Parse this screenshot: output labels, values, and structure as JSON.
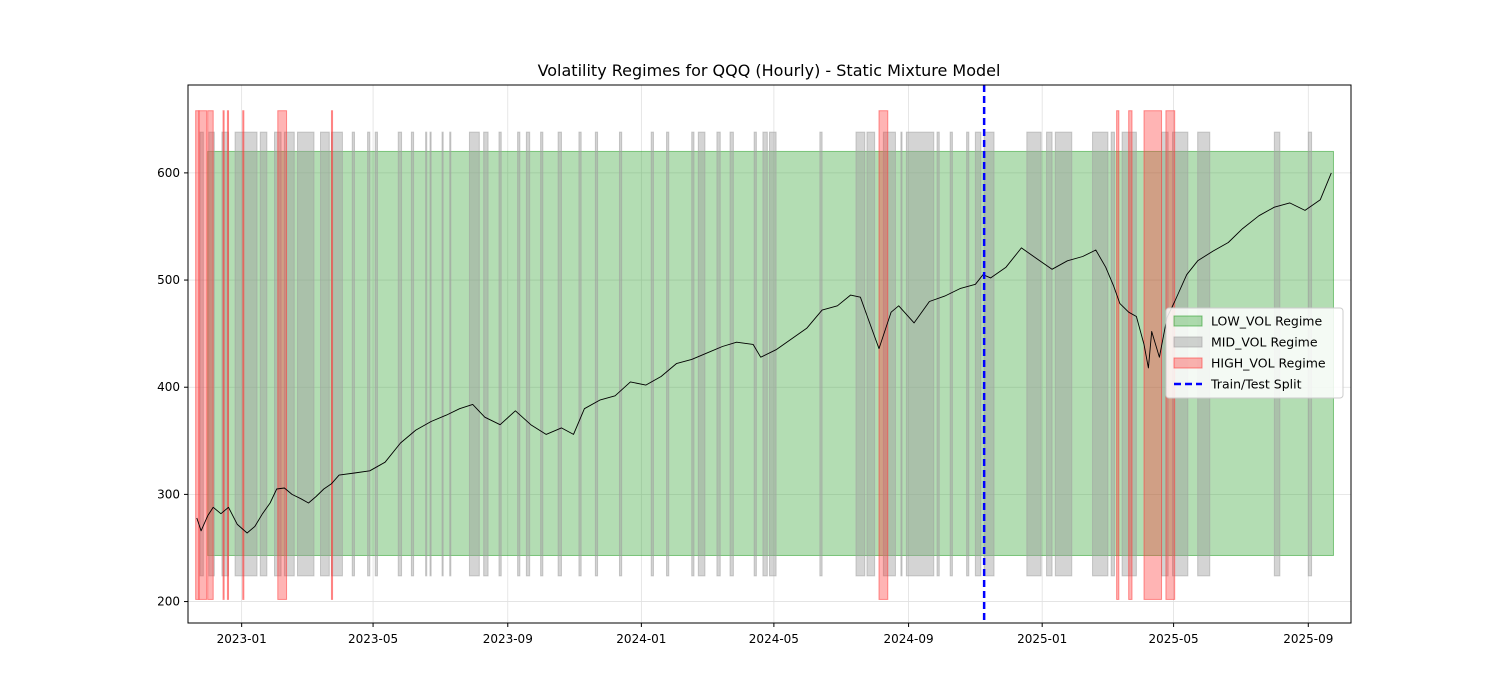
{
  "chart_data": {
    "type": "line",
    "title": "Volatility Regimes for QQQ (Hourly) - Static Mixture Model",
    "xlabel": "",
    "ylabel": "",
    "x_range": [
      "2022-11-13",
      "2025-10-10"
    ],
    "ylim": [
      180,
      682
    ],
    "grid": true,
    "legend_position": "center-right",
    "x_ticks": [
      {
        "date": "2023-01-01",
        "label": "2023-01"
      },
      {
        "date": "2023-05-01",
        "label": "2023-05"
      },
      {
        "date": "2023-09-01",
        "label": "2023-09"
      },
      {
        "date": "2024-01-01",
        "label": "2024-01"
      },
      {
        "date": "2024-05-01",
        "label": "2024-05"
      },
      {
        "date": "2024-09-01",
        "label": "2024-09"
      },
      {
        "date": "2025-01-01",
        "label": "2025-01"
      },
      {
        "date": "2025-05-01",
        "label": "2025-05"
      },
      {
        "date": "2025-09-01",
        "label": "2025-09"
      }
    ],
    "y_ticks": [
      200,
      300,
      400,
      500,
      600
    ],
    "colors": {
      "LOW_VOL": "#2ca02c",
      "MID_VOL": "#a0a0a0",
      "HIGH_VOL": "#ff3b3b",
      "price": "#000000",
      "split": "#0000ff",
      "grid": "#e0e0e0"
    },
    "regime_bands": {
      "LOW_VOL": {
        "y": [
          243,
          620
        ]
      },
      "MID_VOL": {
        "y": [
          224,
          638
        ]
      },
      "HIGH_VOL": {
        "y": [
          202,
          658
        ]
      }
    },
    "legend": [
      {
        "key": "LOW_VOL",
        "label": "LOW_VOL Regime"
      },
      {
        "key": "MID_VOL",
        "label": "MID_VOL Regime"
      },
      {
        "key": "HIGH_VOL",
        "label": "HIGH_VOL Regime"
      },
      {
        "key": "split",
        "label": "Train/Test Split"
      }
    ],
    "regime_spans": {
      "LOW_VOL": [
        [
          "2022-12-01",
          "2025-09-24"
        ]
      ],
      "MID_VOL": [
        [
          "2022-11-24",
          "2022-11-27"
        ],
        [
          "2022-12-02",
          "2022-12-07"
        ],
        [
          "2022-12-14",
          "2022-12-20"
        ],
        [
          "2022-12-26",
          "2023-01-15"
        ],
        [
          "2023-01-18",
          "2023-01-24"
        ],
        [
          "2023-01-31",
          "2023-02-06"
        ],
        [
          "2023-02-09",
          "2023-02-18"
        ],
        [
          "2023-02-21",
          "2023-03-08"
        ],
        [
          "2023-03-14",
          "2023-03-22"
        ],
        [
          "2023-03-24",
          "2023-04-03"
        ],
        [
          "2023-04-12",
          "2023-04-14"
        ],
        [
          "2023-04-26",
          "2023-04-28"
        ],
        [
          "2023-05-03",
          "2023-05-05"
        ],
        [
          "2023-05-24",
          "2023-05-27"
        ],
        [
          "2023-06-05",
          "2023-06-07"
        ],
        [
          "2023-06-18",
          "2023-06-19"
        ],
        [
          "2023-06-22",
          "2023-06-23"
        ],
        [
          "2023-07-03",
          "2023-07-04"
        ],
        [
          "2023-07-10",
          "2023-07-11"
        ],
        [
          "2023-07-28",
          "2023-08-06"
        ],
        [
          "2023-08-10",
          "2023-08-14"
        ],
        [
          "2023-08-24",
          "2023-08-26"
        ],
        [
          "2023-09-10",
          "2023-09-12"
        ],
        [
          "2023-09-18",
          "2023-09-21"
        ],
        [
          "2023-10-01",
          "2023-10-03"
        ],
        [
          "2023-10-17",
          "2023-10-20"
        ],
        [
          "2023-11-05",
          "2023-11-07"
        ],
        [
          "2023-11-20",
          "2023-11-22"
        ],
        [
          "2023-12-12",
          "2023-12-14"
        ],
        [
          "2024-01-10",
          "2024-01-12"
        ],
        [
          "2024-01-24",
          "2024-01-26"
        ],
        [
          "2024-02-16",
          "2024-02-18"
        ],
        [
          "2024-02-22",
          "2024-02-28"
        ],
        [
          "2024-03-10",
          "2024-03-13"
        ],
        [
          "2024-03-22",
          "2024-03-25"
        ],
        [
          "2024-04-13",
          "2024-04-15"
        ],
        [
          "2024-04-21",
          "2024-04-25"
        ],
        [
          "2024-04-27",
          "2024-05-03"
        ],
        [
          "2024-06-12",
          "2024-06-14"
        ],
        [
          "2024-07-15",
          "2024-07-23"
        ],
        [
          "2024-07-25",
          "2024-08-01"
        ],
        [
          "2024-08-09",
          "2024-08-20"
        ],
        [
          "2024-08-25",
          "2024-08-26"
        ],
        [
          "2024-08-30",
          "2024-09-24"
        ],
        [
          "2024-09-27",
          "2024-09-29"
        ],
        [
          "2024-10-09",
          "2024-10-11"
        ],
        [
          "2024-10-24",
          "2024-10-26"
        ],
        [
          "2024-11-01",
          "2024-11-06"
        ],
        [
          "2024-11-09",
          "2024-11-18"
        ],
        [
          "2024-12-18",
          "2024-12-31"
        ],
        [
          "2025-01-05",
          "2025-01-10"
        ],
        [
          "2025-01-13",
          "2025-01-28"
        ],
        [
          "2025-02-16",
          "2025-03-02"
        ],
        [
          "2025-03-05",
          "2025-03-08"
        ],
        [
          "2025-03-15",
          "2025-03-28"
        ],
        [
          "2025-04-20",
          "2025-04-26"
        ],
        [
          "2025-04-30",
          "2025-05-14"
        ],
        [
          "2025-05-23",
          "2025-06-03"
        ],
        [
          "2025-08-01",
          "2025-08-06"
        ],
        [
          "2025-09-01",
          "2025-09-04"
        ]
      ],
      "HIGH_VOL": [
        [
          "2022-11-20",
          "2022-11-23"
        ],
        [
          "2022-11-23",
          "2022-11-30"
        ],
        [
          "2022-12-01",
          "2022-12-06"
        ],
        [
          "2022-12-15",
          "2022-12-16"
        ],
        [
          "2022-12-19",
          "2022-12-20"
        ],
        [
          "2023-01-02",
          "2023-01-03"
        ],
        [
          "2023-02-03",
          "2023-02-11"
        ],
        [
          "2023-03-24",
          "2023-03-25"
        ],
        [
          "2024-08-05",
          "2024-08-13"
        ],
        [
          "2025-03-10",
          "2025-03-12"
        ],
        [
          "2025-03-21",
          "2025-03-24"
        ],
        [
          "2025-04-04",
          "2025-04-20"
        ],
        [
          "2025-04-24",
          "2025-05-02"
        ]
      ]
    },
    "split_date": "2024-11-09",
    "series": [
      {
        "key": "price",
        "x": [
          "2022-11-21",
          "2022-11-25",
          "2022-12-01",
          "2022-12-06",
          "2022-12-13",
          "2022-12-20",
          "2022-12-28",
          "2023-01-06",
          "2023-01-13",
          "2023-01-20",
          "2023-01-27",
          "2023-02-02",
          "2023-02-09",
          "2023-02-16",
          "2023-02-24",
          "2023-03-03",
          "2023-03-10",
          "2023-03-17",
          "2023-03-24",
          "2023-03-31",
          "2023-04-14",
          "2023-04-28",
          "2023-05-12",
          "2023-05-26",
          "2023-06-09",
          "2023-06-23",
          "2023-07-07",
          "2023-07-19",
          "2023-07-31",
          "2023-08-11",
          "2023-08-25",
          "2023-09-08",
          "2023-09-22",
          "2023-10-06",
          "2023-10-20",
          "2023-10-31",
          "2023-11-10",
          "2023-11-24",
          "2023-12-08",
          "2023-12-22",
          "2024-01-05",
          "2024-01-19",
          "2024-02-02",
          "2024-02-16",
          "2024-03-01",
          "2024-03-15",
          "2024-03-28",
          "2024-04-12",
          "2024-04-19",
          "2024-05-03",
          "2024-05-17",
          "2024-05-31",
          "2024-06-14",
          "2024-06-28",
          "2024-07-10",
          "2024-07-19",
          "2024-07-26",
          "2024-08-05",
          "2024-08-16",
          "2024-08-23",
          "2024-09-06",
          "2024-09-20",
          "2024-10-04",
          "2024-10-18",
          "2024-11-01",
          "2024-11-08",
          "2024-11-15",
          "2024-11-29",
          "2024-12-13",
          "2024-12-27",
          "2025-01-10",
          "2025-01-24",
          "2025-02-07",
          "2025-02-19",
          "2025-02-28",
          "2025-03-07",
          "2025-03-13",
          "2025-03-21",
          "2025-03-28",
          "2025-04-04",
          "2025-04-08",
          "2025-04-11",
          "2025-04-18",
          "2025-04-25",
          "2025-05-02",
          "2025-05-13",
          "2025-05-23",
          "2025-06-06",
          "2025-06-20",
          "2025-07-03",
          "2025-07-18",
          "2025-08-01",
          "2025-08-15",
          "2025-08-29",
          "2025-09-12",
          "2025-09-22"
        ],
        "y": [
          278,
          266,
          280,
          288,
          282,
          288,
          272,
          264,
          270,
          282,
          292,
          305,
          306,
          300,
          296,
          292,
          298,
          305,
          310,
          318,
          320,
          322,
          330,
          348,
          360,
          368,
          374,
          380,
          384,
          372,
          365,
          378,
          365,
          356,
          362,
          356,
          380,
          388,
          392,
          405,
          402,
          410,
          422,
          426,
          432,
          438,
          442,
          440,
          428,
          435,
          445,
          455,
          472,
          476,
          486,
          484,
          464,
          436,
          470,
          476,
          460,
          480,
          485,
          492,
          496,
          505,
          502,
          512,
          530,
          520,
          510,
          518,
          522,
          528,
          512,
          495,
          478,
          470,
          466,
          440,
          418,
          452,
          428,
          465,
          480,
          505,
          518,
          527,
          535,
          548,
          560,
          568,
          572,
          565,
          575,
          600
        ]
      }
    ]
  }
}
